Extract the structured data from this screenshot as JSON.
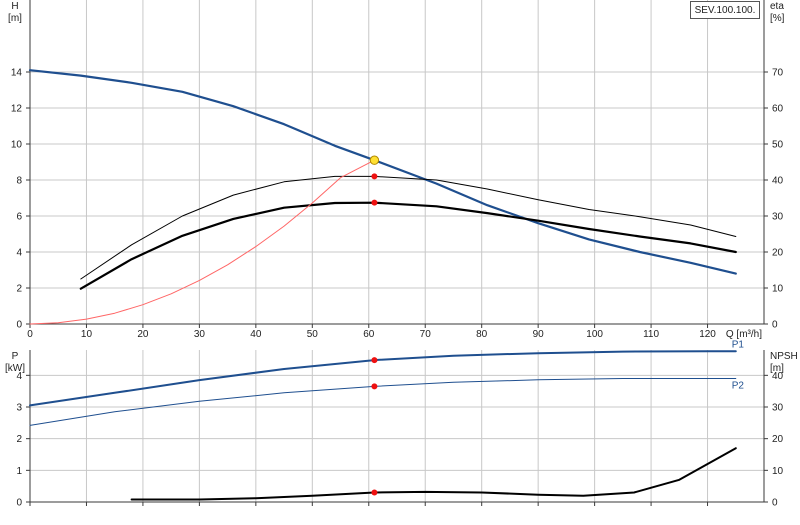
{
  "model_label": "SEV.100.100.",
  "colors": {
    "head_curve": "#1f4f8f",
    "efficiency_curves": "#000000",
    "system_curve": "#ff6666",
    "power_curves": "#1f4f8f",
    "npsh_curve": "#000000",
    "operating_point_duty": "#ffe033",
    "operating_point_marker": "#ee1111",
    "grid": "#c8c8c8"
  },
  "chart_data": [
    {
      "type": "line",
      "name": "performance",
      "xlabel": "Q [m³/h]",
      "ylabel_left": "H",
      "ylabel_left_unit": "[m]",
      "ylabel_right": "eta",
      "ylabel_right_unit": "[%]",
      "xlim": [
        0,
        130
      ],
      "ylim_left": [
        0,
        16
      ],
      "ylim_right": [
        0,
        80
      ],
      "x_ticks": [
        0,
        10,
        20,
        30,
        40,
        50,
        60,
        70,
        80,
        90,
        100,
        110,
        120
      ],
      "y_ticks_left": [
        0,
        2,
        4,
        6,
        8,
        10,
        12,
        14
      ],
      "y_ticks_right": [
        0,
        10,
        20,
        30,
        40,
        50,
        60,
        70
      ],
      "grid": true,
      "series": [
        {
          "key": "head",
          "axis": "left",
          "style": "head",
          "x": [
            0,
            9,
            18,
            27,
            36,
            45,
            54,
            61,
            72,
            81,
            90,
            99,
            108,
            117,
            125
          ],
          "y": [
            14.1,
            13.8,
            13.4,
            12.9,
            12.1,
            11.1,
            9.9,
            9.1,
            7.8,
            6.6,
            5.6,
            4.7,
            4.0,
            3.4,
            2.8
          ]
        },
        {
          "key": "efficiency_upper",
          "axis": "right",
          "style": "eta_thin",
          "x": [
            9,
            18,
            27,
            36,
            45,
            54,
            61,
            72,
            81,
            90,
            99,
            108,
            117,
            125
          ],
          "y": [
            12.5,
            22.0,
            30.0,
            35.8,
            39.5,
            41.0,
            41.0,
            40.0,
            37.5,
            34.5,
            31.8,
            29.8,
            27.5,
            24.3
          ]
        },
        {
          "key": "efficiency_lower",
          "axis": "right",
          "style": "eta_thick",
          "x": [
            9,
            18,
            27,
            36,
            45,
            54,
            61,
            72,
            81,
            90,
            99,
            108,
            117,
            125
          ],
          "y": [
            9.8,
            18.0,
            24.5,
            29.2,
            32.3,
            33.6,
            33.7,
            32.7,
            30.8,
            28.7,
            26.4,
            24.3,
            22.4,
            20.0
          ]
        },
        {
          "key": "system_curve",
          "axis": "left",
          "style": "system",
          "x": [
            0,
            5,
            10,
            15,
            20,
            25,
            30,
            35,
            40,
            45,
            50,
            55,
            61
          ],
          "y": [
            0,
            0.07,
            0.27,
            0.6,
            1.07,
            1.68,
            2.42,
            3.29,
            4.3,
            5.44,
            6.72,
            8.13,
            9.1
          ]
        }
      ],
      "points": [
        {
          "key": "duty_point",
          "x": 61,
          "y": 9.1,
          "axis": "left",
          "style": "duty"
        },
        {
          "key": "eta_upper_point",
          "x": 61,
          "y": 41.0,
          "axis": "right",
          "style": "marker"
        },
        {
          "key": "eta_lower_point",
          "x": 61,
          "y": 33.7,
          "axis": "right",
          "style": "marker"
        }
      ]
    },
    {
      "type": "line",
      "name": "power",
      "xlabel": "",
      "ylabel_left": "P",
      "ylabel_left_unit": "[kW]",
      "ylabel_right": "NPSH",
      "ylabel_right_unit": "[m]",
      "xlim": [
        0,
        130
      ],
      "ylim_left": [
        0,
        4.8
      ],
      "ylim_right": [
        0,
        48
      ],
      "x_ticks": [
        0,
        10,
        20,
        30,
        40,
        50,
        60,
        70,
        80,
        90,
        100,
        110,
        120
      ],
      "y_ticks_left": [
        0,
        1,
        2,
        3,
        4
      ],
      "y_ticks_right": [
        0,
        10,
        20,
        30,
        40
      ],
      "grid": true,
      "series": [
        {
          "key": "P1",
          "label": "P1",
          "axis": "left",
          "style": "p1",
          "x": [
            0,
            15,
            30,
            45,
            61,
            75,
            90,
            105,
            120,
            125
          ],
          "y": [
            3.05,
            3.45,
            3.85,
            4.2,
            4.48,
            4.62,
            4.7,
            4.75,
            4.76,
            4.76
          ]
        },
        {
          "key": "P2",
          "label": "P2",
          "axis": "left",
          "style": "p2",
          "x": [
            0,
            15,
            30,
            45,
            61,
            75,
            90,
            105,
            120,
            125
          ],
          "y": [
            2.42,
            2.85,
            3.18,
            3.45,
            3.65,
            3.78,
            3.86,
            3.9,
            3.9,
            3.9
          ]
        },
        {
          "key": "NPSH",
          "axis": "right",
          "style": "npsh",
          "x": [
            18,
            30,
            40,
            50,
            61,
            70,
            80,
            90,
            98,
            107,
            115,
            125
          ],
          "y": [
            0.8,
            0.8,
            1.2,
            2.0,
            3.0,
            3.2,
            3.0,
            2.3,
            2.0,
            3.0,
            7.0,
            17.0
          ]
        }
      ],
      "points": [
        {
          "key": "p1_point",
          "x": 61,
          "y": 4.48,
          "axis": "left",
          "style": "marker"
        },
        {
          "key": "p2_point",
          "x": 61,
          "y": 3.65,
          "axis": "left",
          "style": "marker"
        },
        {
          "key": "npsh_point",
          "x": 61,
          "y": 3.0,
          "axis": "right",
          "style": "marker"
        }
      ]
    }
  ]
}
